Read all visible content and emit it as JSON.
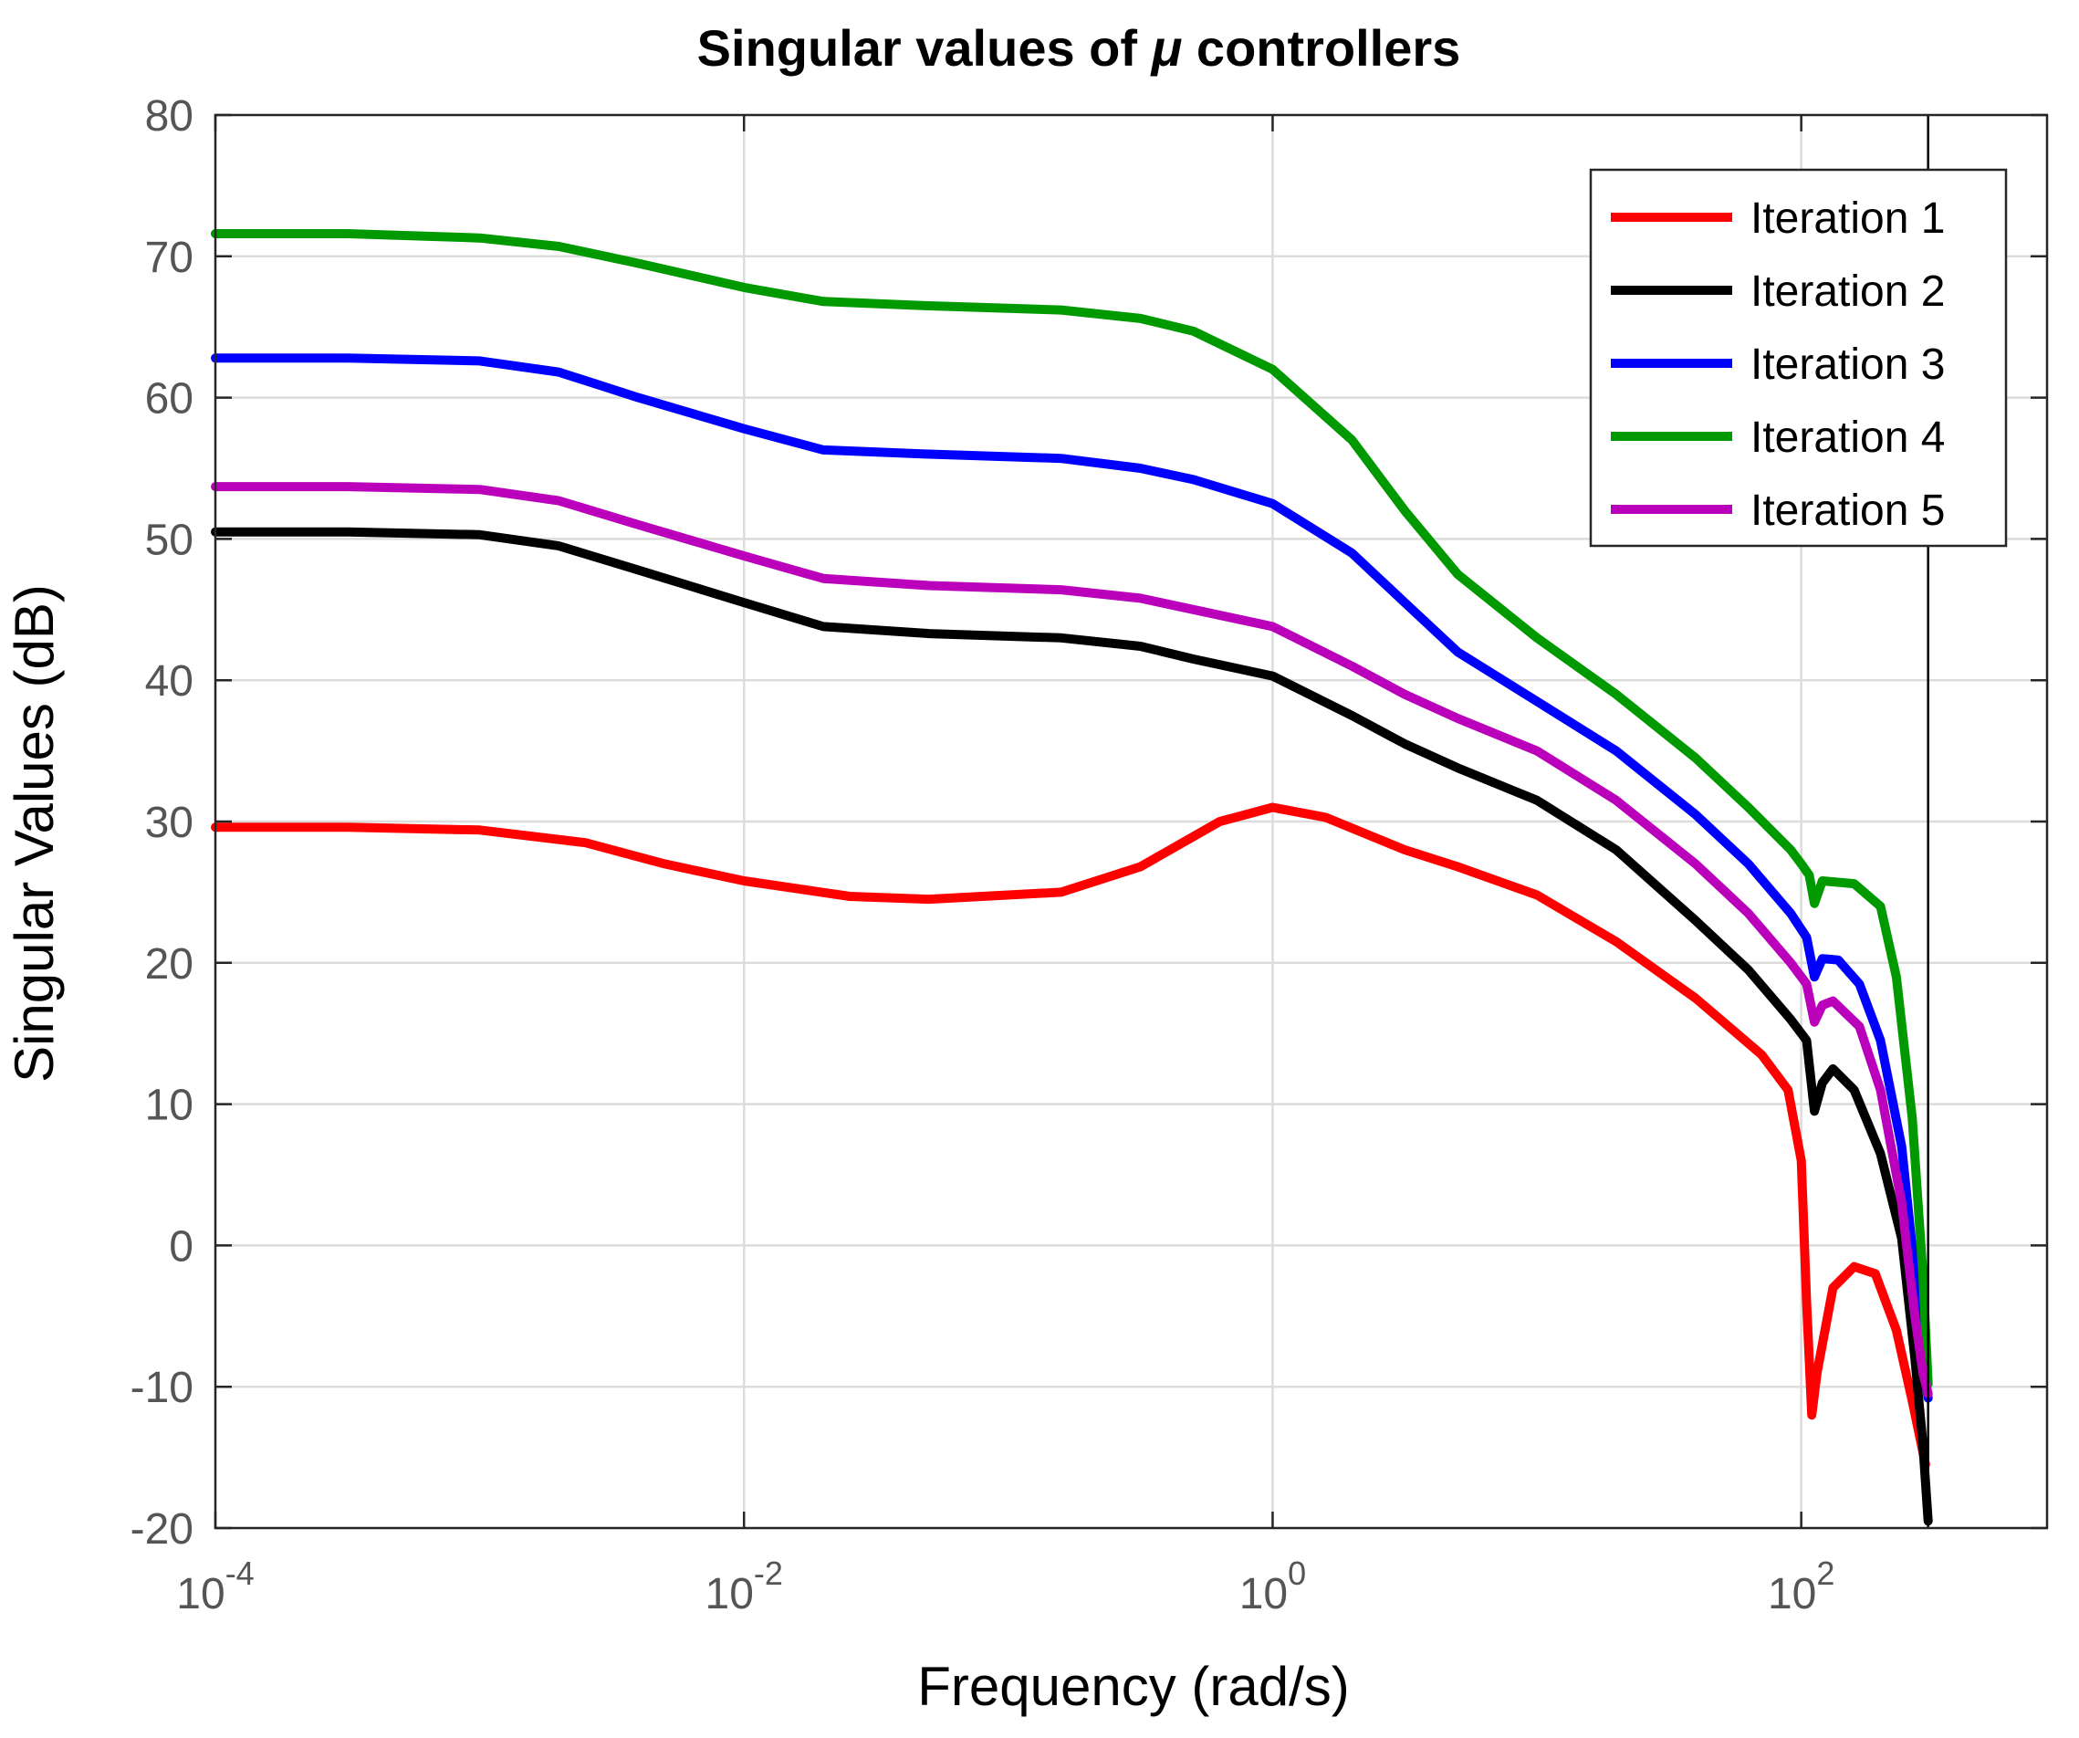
{
  "chart_data": {
    "type": "line",
    "title_prefix": "Singular values of ",
    "title_symbol": "μ",
    "title_suffix": " controllers",
    "xlabel": "Frequency (rad/s)",
    "ylabel": "Singular Values (dB)",
    "xscale": "log",
    "xlim_exp": [
      -4,
      2.93
    ],
    "ylim": [
      -20,
      80
    ],
    "xticks": [
      {
        "base": "10",
        "exp": "-4",
        "value": -4
      },
      {
        "base": "10",
        "exp": "-2",
        "value": -2
      },
      {
        "base": "10",
        "exp": "0",
        "value": 0
      },
      {
        "base": "10",
        "exp": "2",
        "value": 2
      }
    ],
    "yticks": [
      "80",
      "70",
      "60",
      "50",
      "40",
      "30",
      "20",
      "10",
      "0",
      "-10",
      "-20"
    ],
    "grid": true,
    "legend_position": "top-right",
    "vline_log_x": 2.48,
    "series": [
      {
        "name": "Iteration 1",
        "color": "#ff0000",
        "points": [
          [
            -4,
            29.6
          ],
          [
            -3.5,
            29.6
          ],
          [
            -3.0,
            29.4
          ],
          [
            -2.6,
            28.5
          ],
          [
            -2.3,
            27.0
          ],
          [
            -2.0,
            25.8
          ],
          [
            -1.6,
            24.7
          ],
          [
            -1.3,
            24.5
          ],
          [
            -0.8,
            25.0
          ],
          [
            -0.5,
            26.8
          ],
          [
            -0.2,
            30.0
          ],
          [
            0,
            31.0
          ],
          [
            0.2,
            30.3
          ],
          [
            0.5,
            28.0
          ],
          [
            0.7,
            26.8
          ],
          [
            1.0,
            24.8
          ],
          [
            1.3,
            21.5
          ],
          [
            1.6,
            17.5
          ],
          [
            1.85,
            13.5
          ],
          [
            1.95,
            11.0
          ],
          [
            2.0,
            6.0
          ],
          [
            2.02,
            -4.0
          ],
          [
            2.04,
            -12.0
          ],
          [
            2.06,
            -9.0
          ],
          [
            2.12,
            -3.0
          ],
          [
            2.2,
            -1.5
          ],
          [
            2.28,
            -2.0
          ],
          [
            2.36,
            -6.0
          ],
          [
            2.42,
            -11.0
          ],
          [
            2.47,
            -15.5
          ]
        ]
      },
      {
        "name": "Iteration 2",
        "color": "#000000",
        "points": [
          [
            -4,
            50.5
          ],
          [
            -3.5,
            50.5
          ],
          [
            -3.0,
            50.3
          ],
          [
            -2.7,
            49.5
          ],
          [
            -2.4,
            47.8
          ],
          [
            -2.0,
            45.5
          ],
          [
            -1.7,
            43.8
          ],
          [
            -1.3,
            43.3
          ],
          [
            -0.8,
            43.0
          ],
          [
            -0.5,
            42.4
          ],
          [
            -0.3,
            41.5
          ],
          [
            0,
            40.3
          ],
          [
            0.3,
            37.5
          ],
          [
            0.5,
            35.5
          ],
          [
            0.7,
            33.8
          ],
          [
            1.0,
            31.5
          ],
          [
            1.3,
            28.0
          ],
          [
            1.6,
            23.0
          ],
          [
            1.8,
            19.5
          ],
          [
            1.96,
            16.0
          ],
          [
            2.02,
            14.5
          ],
          [
            2.05,
            9.5
          ],
          [
            2.08,
            11.5
          ],
          [
            2.12,
            12.5
          ],
          [
            2.2,
            11.0
          ],
          [
            2.3,
            6.5
          ],
          [
            2.38,
            0.5
          ],
          [
            2.43,
            -8.0
          ],
          [
            2.46,
            -14.0
          ],
          [
            2.48,
            -19.5
          ]
        ]
      },
      {
        "name": "Iteration 3",
        "color": "#0000ff",
        "points": [
          [
            -4,
            62.8
          ],
          [
            -3.5,
            62.8
          ],
          [
            -3.0,
            62.6
          ],
          [
            -2.7,
            61.8
          ],
          [
            -2.4,
            60.0
          ],
          [
            -2.0,
            57.8
          ],
          [
            -1.7,
            56.3
          ],
          [
            -1.3,
            56.0
          ],
          [
            -0.8,
            55.7
          ],
          [
            -0.5,
            55.0
          ],
          [
            -0.3,
            54.2
          ],
          [
            0,
            52.5
          ],
          [
            0.3,
            49.0
          ],
          [
            0.5,
            45.5
          ],
          [
            0.7,
            42.0
          ],
          [
            1.0,
            38.5
          ],
          [
            1.3,
            35.0
          ],
          [
            1.6,
            30.5
          ],
          [
            1.8,
            27.0
          ],
          [
            1.96,
            23.5
          ],
          [
            2.02,
            21.8
          ],
          [
            2.05,
            19.0
          ],
          [
            2.08,
            20.3
          ],
          [
            2.14,
            20.2
          ],
          [
            2.22,
            18.5
          ],
          [
            2.3,
            14.5
          ],
          [
            2.38,
            7.0
          ],
          [
            2.43,
            -2.0
          ],
          [
            2.46,
            -8.0
          ],
          [
            2.48,
            -10.8
          ]
        ]
      },
      {
        "name": "Iteration 4",
        "color": "#009900",
        "points": [
          [
            -4,
            71.6
          ],
          [
            -3.5,
            71.6
          ],
          [
            -3.0,
            71.3
          ],
          [
            -2.7,
            70.7
          ],
          [
            -2.4,
            69.5
          ],
          [
            -2.0,
            67.8
          ],
          [
            -1.7,
            66.8
          ],
          [
            -1.3,
            66.5
          ],
          [
            -0.8,
            66.2
          ],
          [
            -0.5,
            65.6
          ],
          [
            -0.3,
            64.7
          ],
          [
            0,
            62.0
          ],
          [
            0.3,
            57.0
          ],
          [
            0.5,
            52.0
          ],
          [
            0.7,
            47.5
          ],
          [
            1.0,
            43.0
          ],
          [
            1.3,
            39.0
          ],
          [
            1.6,
            34.5
          ],
          [
            1.8,
            31.0
          ],
          [
            1.96,
            28.0
          ],
          [
            2.0,
            27.0
          ],
          [
            2.03,
            26.2
          ],
          [
            2.05,
            24.2
          ],
          [
            2.08,
            25.8
          ],
          [
            2.2,
            25.6
          ],
          [
            2.3,
            24.0
          ],
          [
            2.36,
            19.0
          ],
          [
            2.42,
            9.0
          ],
          [
            2.46,
            -2.0
          ],
          [
            2.48,
            -9.8
          ]
        ]
      },
      {
        "name": "Iteration 5",
        "color": "#bb00bb",
        "points": [
          [
            -4,
            53.7
          ],
          [
            -3.5,
            53.7
          ],
          [
            -3.0,
            53.5
          ],
          [
            -2.7,
            52.7
          ],
          [
            -2.4,
            51.0
          ],
          [
            -2.0,
            48.8
          ],
          [
            -1.7,
            47.2
          ],
          [
            -1.3,
            46.7
          ],
          [
            -0.8,
            46.4
          ],
          [
            -0.5,
            45.8
          ],
          [
            -0.3,
            45.0
          ],
          [
            0,
            43.8
          ],
          [
            0.3,
            41.0
          ],
          [
            0.5,
            39.0
          ],
          [
            0.7,
            37.3
          ],
          [
            1.0,
            35.0
          ],
          [
            1.3,
            31.5
          ],
          [
            1.6,
            27.0
          ],
          [
            1.8,
            23.5
          ],
          [
            1.96,
            20.0
          ],
          [
            2.02,
            18.5
          ],
          [
            2.05,
            15.8
          ],
          [
            2.08,
            17.0
          ],
          [
            2.12,
            17.3
          ],
          [
            2.22,
            15.5
          ],
          [
            2.3,
            11.0
          ],
          [
            2.38,
            3.0
          ],
          [
            2.43,
            -5.0
          ],
          [
            2.46,
            -9.0
          ],
          [
            2.48,
            -10.5
          ]
        ]
      }
    ]
  }
}
